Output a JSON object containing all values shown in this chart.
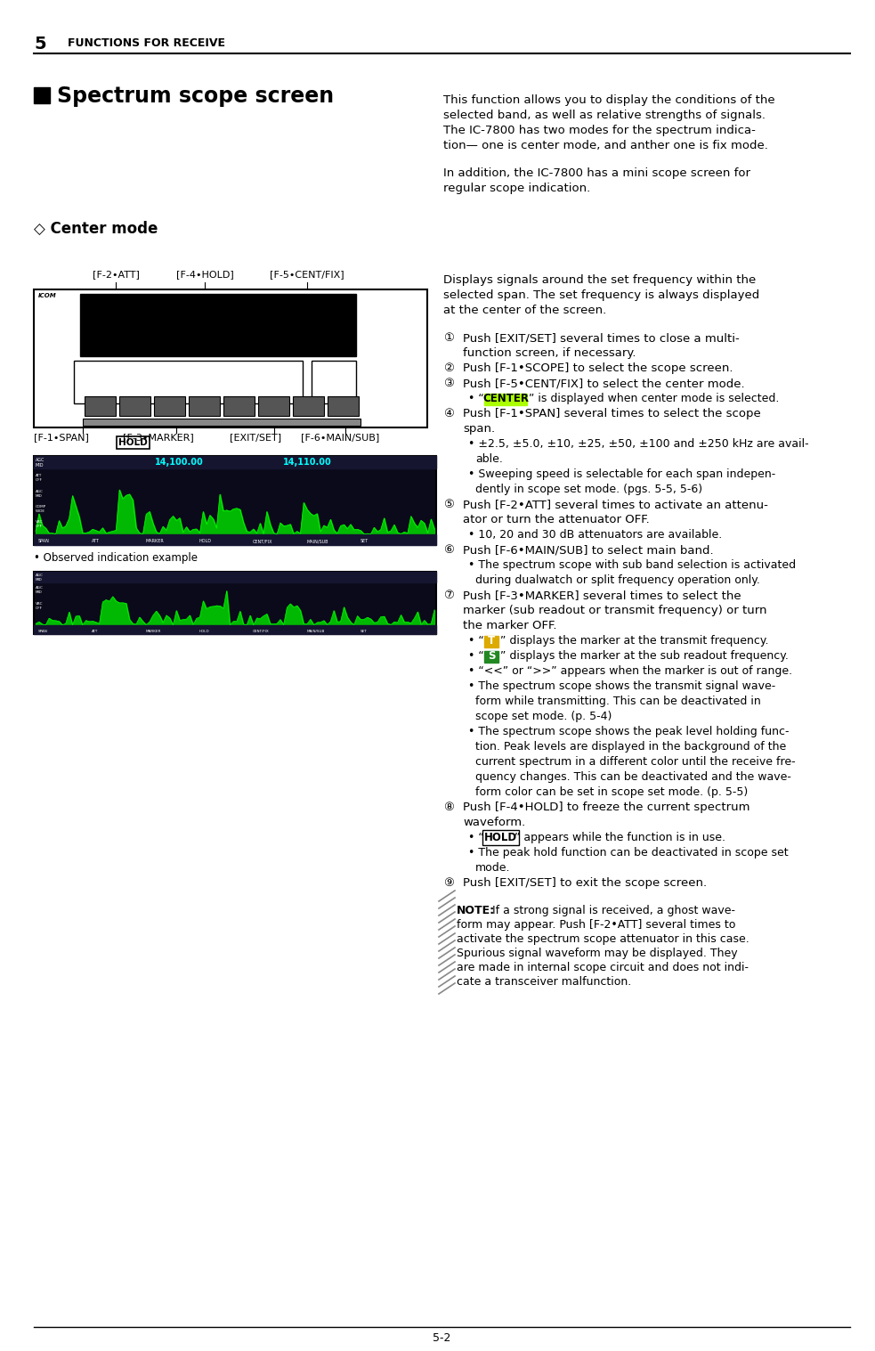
{
  "page_bg": "#ffffff",
  "header_number": "5",
  "header_text": "FUNCTIONS FOR RECEIVE",
  "section_title": "Spectrum scope screen",
  "center_mode_title": "◇ Center mode",
  "intro_para1_lines": [
    "This function allows you to display the conditions of the",
    "selected band, as well as relative strengths of signals.",
    "The IC-7800 has two modes for the spectrum indica-",
    "tion— one is center mode, and anther one is fix mode."
  ],
  "intro_para2_lines": [
    "In addition, the IC-7800 has a mini scope screen for",
    "regular scope indication."
  ],
  "center_mode_desc_lines": [
    "Displays signals around the set frequency within the",
    "selected span. The set frequency is always displayed",
    "at the center of the screen."
  ],
  "steps": [
    {
      "num": "①",
      "lines": [
        "Push [EXIT/SET] several times to close a multi-",
        "function screen, if necessary."
      ]
    },
    {
      "num": "②",
      "lines": [
        "Push [F-1•SCOPE] to select the scope screen."
      ]
    },
    {
      "num": "③",
      "lines": [
        "Push [F-5•CENT/FIX] to select the center mode."
      ]
    },
    {
      "num": "",
      "lines": [
        "• “CENTER” is displayed when center mode is selected."
      ],
      "highlight_center": true
    },
    {
      "num": "④",
      "lines": [
        "Push [F-1•SPAN] several times to select the scope",
        "span."
      ]
    },
    {
      "num": "",
      "lines": [
        "• ±2.5, ±5.0, ±10, ±25, ±50, ±100 and ±250 kHz are avail-",
        "able."
      ]
    },
    {
      "num": "",
      "lines": [
        "• Sweeping speed is selectable for each span indepen-",
        "dently in scope set mode. (pgs. 5-5, 5-6)"
      ]
    },
    {
      "num": "⑤",
      "lines": [
        "Push [F-2•ATT] several times to activate an attenu-",
        "ator or turn the attenuator OFF."
      ]
    },
    {
      "num": "",
      "lines": [
        "• 10, 20 and 30 dB attenuators are available."
      ]
    },
    {
      "num": "⑥",
      "lines": [
        "Push [F-6•MAIN/SUB] to select main band."
      ]
    },
    {
      "num": "",
      "lines": [
        "• The spectrum scope with sub band selection is activated",
        "during dualwatch or split frequency operation only."
      ]
    },
    {
      "num": "⑦",
      "lines": [
        "Push [F-3•MARKER] several times to select the",
        "marker (sub readout or transmit frequency) or turn",
        "the marker OFF."
      ]
    },
    {
      "num": "",
      "lines": [
        "• “ T ” displays the marker at the transmit frequency."
      ],
      "marker_t": true
    },
    {
      "num": "",
      "lines": [
        "• “ S ” displays the marker at the sub readout frequency."
      ],
      "marker_s": true
    },
    {
      "num": "",
      "lines": [
        "• “<<” or “>>” appears when the marker is out of range."
      ]
    },
    {
      "num": "",
      "lines": [
        "• The spectrum scope shows the transmit signal wave-",
        "form while transmitting. This can be deactivated in",
        "scope set mode. (p. 5-4)"
      ]
    },
    {
      "num": "",
      "lines": [
        "• The spectrum scope shows the peak level holding func-",
        "tion. Peak levels are displayed in the background of the",
        "current spectrum in a different color until the receive fre-",
        "quency changes. This can be deactivated and the wave-",
        "form color can be set in scope set mode. (p. 5-5)"
      ]
    },
    {
      "num": "⑧",
      "lines": [
        "Push [F-4•HOLD] to freeze the current spectrum",
        "waveform."
      ]
    },
    {
      "num": "",
      "lines": [
        "• “HOLD” appears while the function is in use."
      ],
      "hold_bold": true
    },
    {
      "num": "",
      "lines": [
        "• The peak hold function can be deactivated in scope set",
        "mode."
      ]
    },
    {
      "num": "⑨",
      "lines": [
        "Push [EXIT/SET] to exit the scope screen."
      ]
    }
  ],
  "note_lines": [
    "NOTE: If a strong signal is received, a ghost wave-",
    "form may appear. Push [F-2•ATT] several times to",
    "activate the spectrum scope attenuator in this case.",
    "Spurious signal waveform may be displayed. They",
    "are made in internal scope circuit and does not indi-",
    "cate a transceiver malfunction."
  ],
  "observed_label": "• Observed indication example",
  "page_number": "5-2",
  "col_split": 0.505,
  "ml": 0.038,
  "mr": 0.97,
  "mt": 0.975,
  "mb": 0.018
}
